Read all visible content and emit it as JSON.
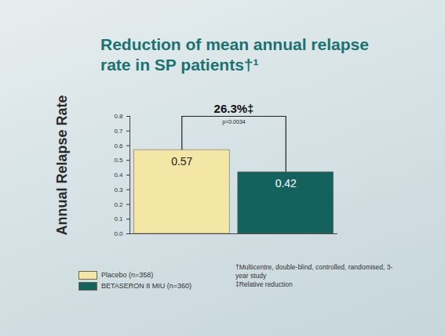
{
  "chart_data": {
    "type": "bar",
    "title": "Reduction of mean annual relapse rate in SP patients†¹",
    "ylabel": "Annual Relapse Rate",
    "categories": [
      null
    ],
    "series": [
      {
        "name": "Placebo (n=358)",
        "color": "#f4e7a6",
        "values": [
          0.57
        ]
      },
      {
        "name": "BETASERON 8 MIU (n=360)",
        "color": "#14625d",
        "values": [
          0.42
        ]
      }
    ],
    "ylim": [
      0,
      0.8
    ],
    "yticks": [
      {
        "value": 0,
        "label": "0.0"
      },
      0.1,
      0.2,
      0.3,
      0.4,
      0.5,
      0.6,
      0.7,
      0.8
    ],
    "data_labels": true,
    "tick_labels": "y",
    "legend": "bottom-left",
    "annotations": [
      "26.3%‡",
      "p=0.0034"
    ],
    "footnotes": [
      "†Multicentre, double-blind, controlled, randomised, 3-year study",
      "‡Relative reduction"
    ]
  }
}
